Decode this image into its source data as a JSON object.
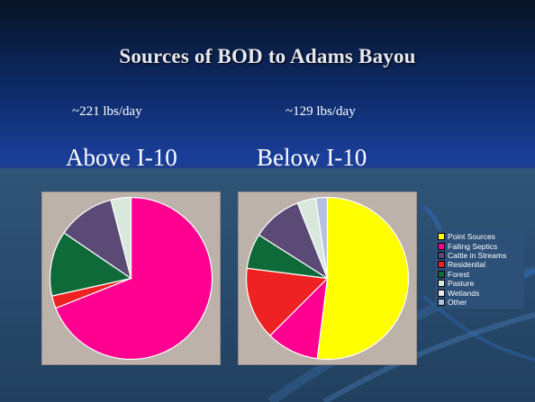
{
  "title": "Sources of BOD to Adams Bayou",
  "left_load": "~221 lbs/day",
  "right_load": "~129 lbs/day",
  "left_region": "Above I-10",
  "right_region": "Below I-10",
  "colors": {
    "Point Sources": "#ffff00",
    "Failing Septics": "#ff0090",
    "Cattle in Streams": "#5a4a75",
    "Residential": "#ee2222",
    "Forest": "#0f6a3a",
    "Pasture": "#d8e8dc",
    "Wetlands": "#e8e8f4",
    "Other": "#b6c0e0"
  },
  "legend": [
    "Point Sources",
    "Failing Septics",
    "Cattle in Streams",
    "Residential",
    "Forest",
    "Pasture",
    "Wetlands",
    "Other"
  ],
  "chart_data": [
    {
      "type": "pie",
      "title": "",
      "categories": [
        "Failing Septics",
        "Residential",
        "Forest",
        "Cattle in Streams",
        "Pasture"
      ],
      "values": [
        69,
        2.5,
        13,
        11.5,
        4
      ]
    },
    {
      "type": "pie",
      "title": "",
      "categories": [
        "Point Sources",
        "Failing Septics",
        "Residential",
        "Forest",
        "Cattle in Streams",
        "Pasture",
        "Other"
      ],
      "values": [
        52,
        10.5,
        14.5,
        7,
        10,
        3.7,
        2.3
      ]
    }
  ]
}
